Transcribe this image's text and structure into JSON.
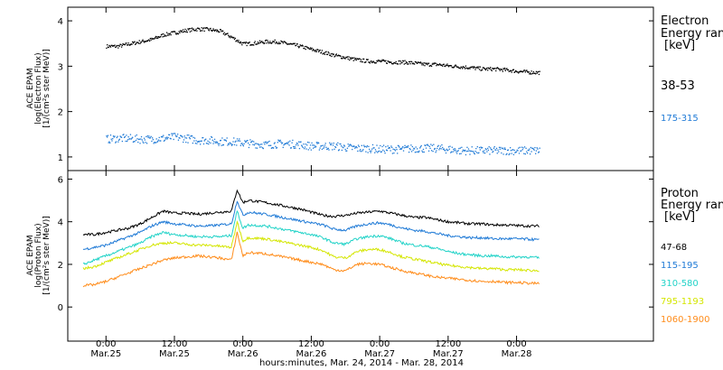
{
  "chart_data": [
    {
      "type": "scatter",
      "ylabel": [
        "ACE EPAM",
        "log(Electron Flux)",
        "[1/(cm²s ster MeV)]"
      ],
      "ylim": [
        0.7,
        4.3
      ],
      "yticks": [
        1,
        2,
        3,
        4
      ],
      "legend": {
        "title": [
          "Electron",
          "Energy range",
          "[keV]"
        ],
        "placement": "right"
      },
      "series": [
        {
          "name": "38-53",
          "color": "#000000",
          "x": [
            0.0,
            2.0,
            4.0,
            6.0,
            8.0,
            10.0,
            12.0,
            14.0,
            16.0,
            18.0,
            20.0,
            22.0,
            24.0,
            26.0,
            28.0,
            30.0,
            32.0,
            34.0,
            36.0,
            38.0,
            40.0,
            42.0,
            44.0,
            46.0,
            48.0,
            50.0,
            52.0,
            54.0,
            56.0,
            58.0,
            60.0,
            62.0,
            64.0,
            66.0,
            68.0,
            70.0,
            72.0,
            74.0,
            76.0
          ],
          "values": [
            3.45,
            3.45,
            3.5,
            3.55,
            3.6,
            3.7,
            3.75,
            3.8,
            3.83,
            3.82,
            3.78,
            3.65,
            3.5,
            3.52,
            3.55,
            3.55,
            3.5,
            3.45,
            3.38,
            3.32,
            3.25,
            3.2,
            3.15,
            3.12,
            3.12,
            3.1,
            3.1,
            3.08,
            3.05,
            3.05,
            3.02,
            3.0,
            2.98,
            2.95,
            2.95,
            2.93,
            2.9,
            2.88,
            2.87
          ]
        },
        {
          "name": "175-315",
          "color": "#1f7ad6",
          "x": [
            0.0,
            2.0,
            4.0,
            6.0,
            8.0,
            10.0,
            12.0,
            14.0,
            16.0,
            18.0,
            20.0,
            22.0,
            24.0,
            26.0,
            28.0,
            30.0,
            32.0,
            34.0,
            36.0,
            38.0,
            40.0,
            42.0,
            44.0,
            46.0,
            48.0,
            50.0,
            52.0,
            54.0,
            56.0,
            58.0,
            60.0,
            62.0,
            64.0,
            66.0,
            68.0,
            70.0,
            72.0,
            74.0,
            76.0
          ],
          "values": [
            1.4,
            1.42,
            1.42,
            1.4,
            1.4,
            1.42,
            1.45,
            1.42,
            1.38,
            1.38,
            1.35,
            1.35,
            1.32,
            1.3,
            1.28,
            1.3,
            1.3,
            1.28,
            1.25,
            1.25,
            1.25,
            1.22,
            1.2,
            1.2,
            1.18,
            1.18,
            1.18,
            1.2,
            1.2,
            1.2,
            1.18,
            1.15,
            1.15,
            1.15,
            1.15,
            1.15,
            1.15,
            1.15,
            1.15
          ]
        }
      ]
    },
    {
      "type": "line",
      "ylabel": [
        "ACE EPAM",
        "log(Proton Flux)",
        "[1/(cm²s ster MeV)]"
      ],
      "ylim": [
        -1.6,
        6.4
      ],
      "yticks": [
        0,
        2,
        4,
        6
      ],
      "legend": {
        "title": [
          "Proton",
          "Energy range",
          "[keV]"
        ],
        "placement": "right"
      },
      "series": [
        {
          "name": "47-68",
          "color": "#000000",
          "x": [
            -4.0,
            -2.0,
            0.0,
            2.0,
            4.0,
            6.0,
            8.0,
            10.0,
            12.0,
            14.0,
            16.0,
            18.0,
            20.0,
            22.0,
            23.0,
            24.0,
            25.0,
            28.0,
            30.0,
            32.0,
            34.0,
            36.0,
            38.0,
            40.0,
            42.0,
            44.0,
            46.0,
            48.0,
            50.0,
            52.0,
            54.0,
            56.0,
            58.0,
            60.0,
            62.0,
            64.0,
            66.0,
            68.0,
            70.0,
            72.0,
            74.0,
            76.0
          ],
          "values": [
            3.4,
            3.4,
            3.5,
            3.6,
            3.7,
            3.9,
            4.2,
            4.5,
            4.4,
            4.4,
            4.35,
            4.4,
            4.45,
            4.5,
            5.5,
            4.9,
            5.0,
            4.9,
            4.8,
            4.7,
            4.6,
            4.45,
            4.3,
            4.25,
            4.3,
            4.4,
            4.45,
            4.5,
            4.4,
            4.3,
            4.2,
            4.2,
            4.1,
            4.0,
            3.95,
            3.9,
            3.9,
            3.85,
            3.85,
            3.82,
            3.8,
            3.8
          ]
        },
        {
          "name": "115-195",
          "color": "#1f7ad6",
          "x": [
            -4.0,
            -2.0,
            0.0,
            2.0,
            4.0,
            6.0,
            8.0,
            10.0,
            12.0,
            14.0,
            16.0,
            18.0,
            20.0,
            22.0,
            23.0,
            24.0,
            25.0,
            28.0,
            30.0,
            32.0,
            34.0,
            36.0,
            38.0,
            40.0,
            42.0,
            44.0,
            46.0,
            48.0,
            50.0,
            52.0,
            54.0,
            56.0,
            58.0,
            60.0,
            62.0,
            64.0,
            66.0,
            68.0,
            70.0,
            72.0,
            74.0,
            76.0
          ],
          "values": [
            2.7,
            2.8,
            2.9,
            3.1,
            3.3,
            3.5,
            3.8,
            4.0,
            3.9,
            3.85,
            3.8,
            3.8,
            3.85,
            3.9,
            5.0,
            4.3,
            4.45,
            4.35,
            4.25,
            4.15,
            4.05,
            3.95,
            3.85,
            3.65,
            3.6,
            3.8,
            3.9,
            3.95,
            3.85,
            3.7,
            3.6,
            3.55,
            3.45,
            3.35,
            3.3,
            3.25,
            3.25,
            3.2,
            3.2,
            3.2,
            3.18,
            3.15
          ]
        },
        {
          "name": "310-580",
          "color": "#22d3c8",
          "x": [
            -4.0,
            -2.0,
            0.0,
            2.0,
            4.0,
            6.0,
            8.0,
            10.0,
            12.0,
            14.0,
            16.0,
            18.0,
            20.0,
            22.0,
            23.0,
            24.0,
            25.0,
            28.0,
            30.0,
            32.0,
            34.0,
            36.0,
            38.0,
            40.0,
            42.0,
            44.0,
            46.0,
            48.0,
            50.0,
            52.0,
            54.0,
            56.0,
            58.0,
            60.0,
            62.0,
            64.0,
            66.0,
            68.0,
            70.0,
            72.0,
            74.0,
            76.0
          ],
          "values": [
            2.0,
            2.2,
            2.4,
            2.6,
            2.8,
            3.0,
            3.3,
            3.5,
            3.4,
            3.35,
            3.3,
            3.3,
            3.3,
            3.35,
            4.5,
            3.7,
            3.85,
            3.8,
            3.7,
            3.6,
            3.5,
            3.4,
            3.25,
            3.0,
            2.95,
            3.2,
            3.3,
            3.35,
            3.2,
            3.0,
            2.9,
            2.85,
            2.75,
            2.6,
            2.5,
            2.45,
            2.4,
            2.4,
            2.35,
            2.35,
            2.35,
            2.3
          ]
        },
        {
          "name": "795-1193",
          "color": "#d4e600",
          "x": [
            -4.0,
            -2.0,
            0.0,
            2.0,
            4.0,
            6.0,
            8.0,
            10.0,
            12.0,
            14.0,
            16.0,
            18.0,
            20.0,
            22.0,
            23.0,
            24.0,
            25.0,
            28.0,
            30.0,
            32.0,
            34.0,
            36.0,
            38.0,
            40.0,
            42.0,
            44.0,
            46.0,
            48.0,
            50.0,
            52.0,
            54.0,
            56.0,
            58.0,
            60.0,
            62.0,
            64.0,
            66.0,
            68.0,
            70.0,
            72.0,
            74.0,
            76.0
          ],
          "values": [
            1.8,
            1.9,
            2.1,
            2.3,
            2.5,
            2.7,
            2.9,
            3.0,
            3.0,
            2.95,
            2.9,
            2.9,
            2.85,
            2.8,
            4.0,
            3.1,
            3.25,
            3.2,
            3.1,
            3.0,
            2.9,
            2.8,
            2.65,
            2.35,
            2.3,
            2.6,
            2.7,
            2.7,
            2.55,
            2.35,
            2.25,
            2.15,
            2.05,
            1.95,
            1.9,
            1.85,
            1.8,
            1.8,
            1.75,
            1.75,
            1.72,
            1.7
          ]
        },
        {
          "name": "1060-1900",
          "color": "#ff8c1a",
          "x": [
            -4.0,
            -2.0,
            0.0,
            2.0,
            4.0,
            6.0,
            8.0,
            10.0,
            12.0,
            14.0,
            16.0,
            18.0,
            20.0,
            22.0,
            23.0,
            24.0,
            25.0,
            28.0,
            30.0,
            32.0,
            34.0,
            36.0,
            38.0,
            40.0,
            42.0,
            44.0,
            46.0,
            48.0,
            50.0,
            52.0,
            54.0,
            56.0,
            58.0,
            60.0,
            62.0,
            64.0,
            66.0,
            68.0,
            70.0,
            72.0,
            74.0,
            76.0
          ],
          "values": [
            1.0,
            1.05,
            1.2,
            1.4,
            1.6,
            1.8,
            2.0,
            2.2,
            2.3,
            2.35,
            2.4,
            2.35,
            2.3,
            2.2,
            3.5,
            2.4,
            2.55,
            2.5,
            2.4,
            2.3,
            2.2,
            2.1,
            2.0,
            1.75,
            1.7,
            2.0,
            2.05,
            2.0,
            1.85,
            1.7,
            1.6,
            1.5,
            1.4,
            1.35,
            1.3,
            1.25,
            1.2,
            1.2,
            1.15,
            1.15,
            1.12,
            1.1
          ]
        }
      ]
    }
  ],
  "xaxis": {
    "units": "hours after 0:00 Mar.25",
    "range": [
      -6.7,
      96.0
    ],
    "ticks": [
      {
        "x": 0,
        "time": "0:00",
        "date": "Mar.25"
      },
      {
        "x": 12,
        "time": "12:00",
        "date": "Mar.25"
      },
      {
        "x": 24,
        "time": "0:00",
        "date": "Mar.26"
      },
      {
        "x": 36,
        "time": "12:00",
        "date": "Mar.26"
      },
      {
        "x": 48,
        "time": "0:00",
        "date": "Mar.27"
      },
      {
        "x": 60,
        "time": "12:00",
        "date": "Mar.27"
      },
      {
        "x": 72,
        "time": "0:00",
        "date": "Mar.28"
      }
    ],
    "xlabel": "hours:minutes, Mar. 24, 2014 - Mar. 28, 2014"
  }
}
